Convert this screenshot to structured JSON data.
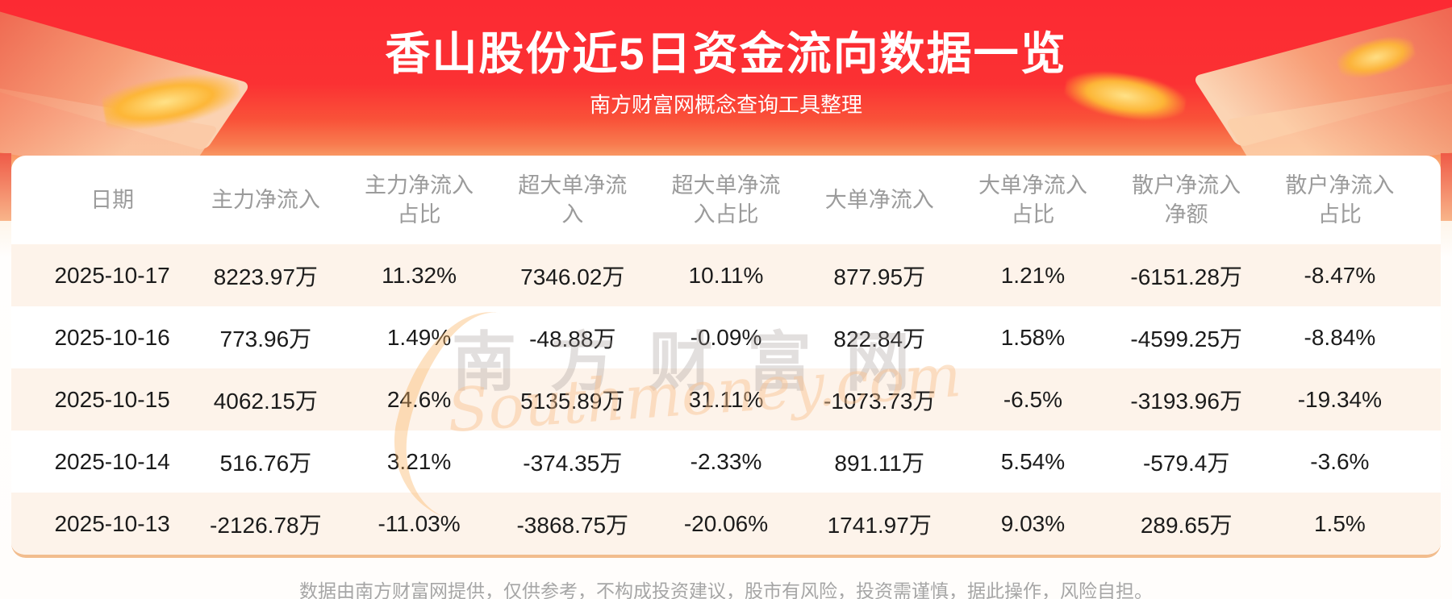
{
  "banner": {
    "title": "香山股份近5日资金流向数据一览",
    "subtitle": "南方财富网概念查询工具整理"
  },
  "chart_data": {
    "type": "table",
    "title": "香山股份近5日资金流向数据一览",
    "columns": [
      "日期",
      "主力净流入",
      "主力净流入占比",
      "超大单净流入",
      "超大单净流入占比",
      "大单净流入",
      "大单净流入占比",
      "散户净流入净额",
      "散户净流入占比"
    ],
    "rows": [
      [
        "2025-10-17",
        "8223.97万",
        "11.32%",
        "7346.02万",
        "10.11%",
        "877.95万",
        "1.21%",
        "-6151.28万",
        "-8.47%"
      ],
      [
        "2025-10-16",
        "773.96万",
        "1.49%",
        "-48.88万",
        "-0.09%",
        "822.84万",
        "1.58%",
        "-4599.25万",
        "-8.84%"
      ],
      [
        "2025-10-15",
        "4062.15万",
        "24.6%",
        "5135.89万",
        "31.11%",
        "-1073.73万",
        "-6.5%",
        "-3193.96万",
        "-19.34%"
      ],
      [
        "2025-10-14",
        "516.76万",
        "3.21%",
        "-374.35万",
        "-2.33%",
        "891.11万",
        "5.54%",
        "-579.4万",
        "-3.6%"
      ],
      [
        "2025-10-13",
        "-2126.78万",
        "-11.03%",
        "-3868.75万",
        "-20.06%",
        "1741.97万",
        "9.03%",
        "289.65万",
        "1.5%"
      ]
    ]
  },
  "watermark": {
    "cn": "南方财富网",
    "en": "Southmoney.com"
  },
  "footer": {
    "disclaimer": "数据由南方财富网提供，仅供参考，不构成投资建议，股市有风险，投资需谨慎，据此操作，风险自担。"
  },
  "colors": {
    "banner_red": "#fb2a33",
    "banner_peach": "#f9bb85",
    "row_alt": "#fdf3ea",
    "header_text": "#9b9b9b",
    "body_text": "#1b1b1b",
    "footer_text": "#a6a6a6",
    "accent_line": "#f2bd8e",
    "gold": "#fdb636"
  }
}
